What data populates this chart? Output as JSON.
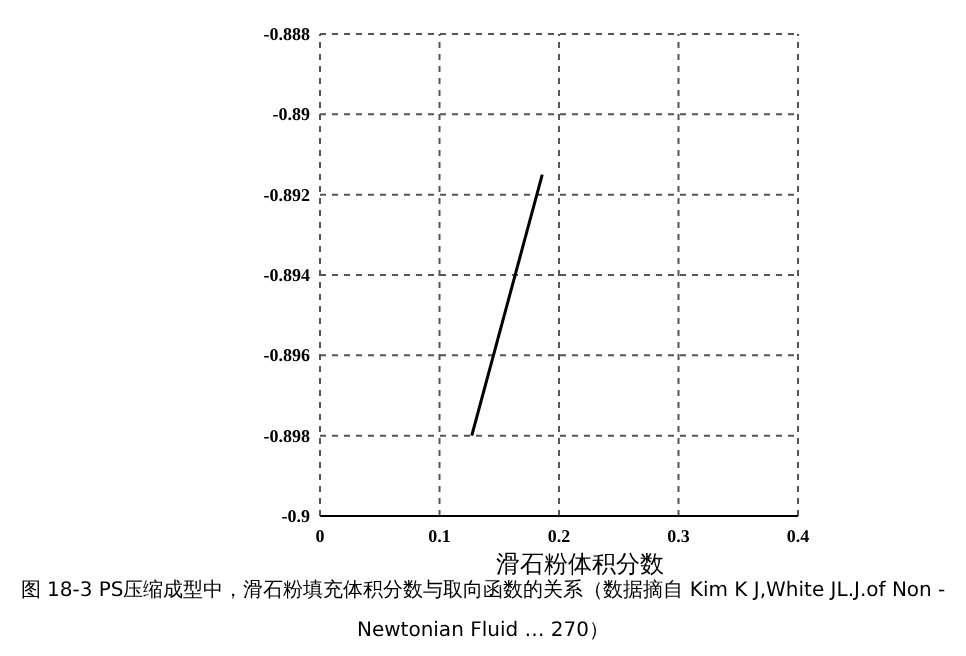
{
  "chart_data": {
    "type": "line",
    "xlabel": "滑石粉体积分数",
    "annotations": [
      "图 18-3 PS压缩成型中，滑石粉填充体积分数与取向函数的关系（数据摘自 Kim K J,White JL.J.of Non - Newtonian Fluid … 270）"
    ],
    "series": [
      {
        "color": "#000000",
        "x": [
          0.127,
          0.186
        ],
        "values": [
          -0.898,
          -0.8915
        ]
      }
    ],
    "xlim": [
      0,
      0.4
    ],
    "xticks": [
      0,
      0.1,
      0.2,
      0.3,
      0.4
    ],
    "ylim": [
      -0.9,
      -0.888
    ],
    "yticks": [
      -0.888,
      -0.89,
      -0.892,
      -0.894,
      -0.896,
      -0.898,
      -0.9
    ],
    "grid": true,
    "line_style": "solid",
    "marker": "none"
  }
}
